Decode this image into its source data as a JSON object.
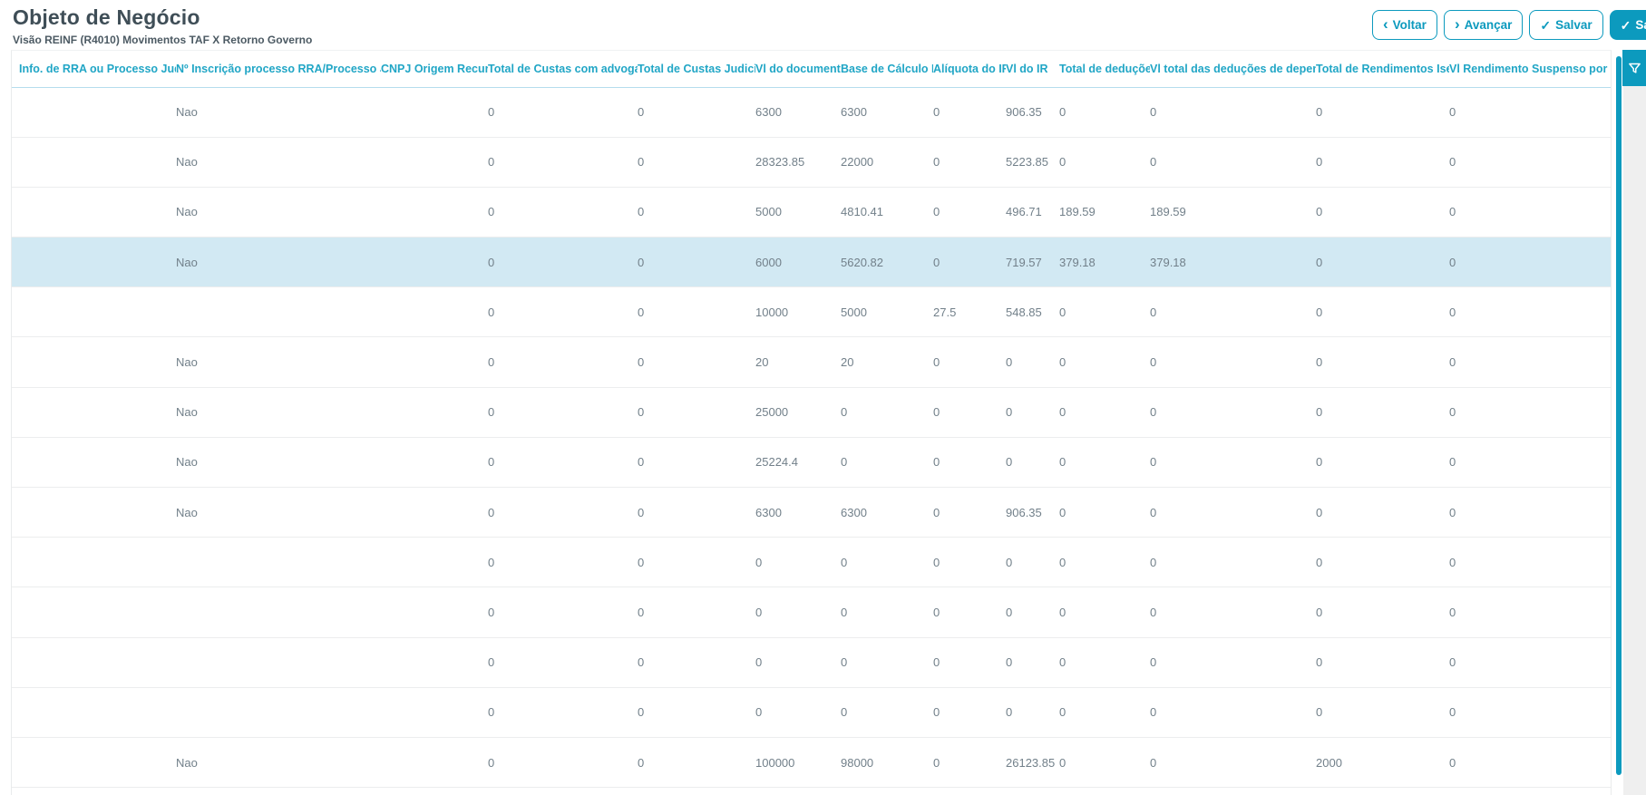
{
  "header": {
    "title": "Objeto de Negócio",
    "subtitle": "Visão REINF (R4010) Movimentos TAF X Retorno Governo",
    "buttons": [
      {
        "label": "Voltar",
        "icon": "chevron-left",
        "style": "outline"
      },
      {
        "label": "Avançar",
        "icon": "chevron-right",
        "style": "outline"
      },
      {
        "label": "Salvar",
        "icon": "check",
        "style": "outline"
      },
      {
        "label": "Salvar e Avançar",
        "icon": "check",
        "style": "primary"
      }
    ]
  },
  "icons": {
    "chevron_left": "‹",
    "chevron_right": "›",
    "check": "✓",
    "filter": "funnel-icon"
  },
  "colors": {
    "primary": "#0c9abe",
    "header_text": "#21a6c6",
    "selected_row": "#d2e9f3"
  },
  "table": {
    "columns": [
      "Info. de RRA ou Processo Judicial",
      "Nº Inscrição processo RRA/Processo Judicial",
      "CNPJ Origem Recurso",
      "Total de Custas com advogados",
      "Total de Custas Judiciais",
      "Vl do documento",
      "Base de Cálculo IR",
      "Alíquota do IR",
      "Vl do IR",
      "Total de deduções",
      "Vl total das deduções de dependentes",
      "Total de Rendimentos Isentos",
      "Vl Rendimento Suspenso por pro"
    ],
    "selected_row_index": 3,
    "rows": [
      [
        "",
        "Nao",
        "",
        "0",
        "0",
        "6300",
        "6300",
        "0",
        "906.35",
        "0",
        "0",
        "0",
        "0"
      ],
      [
        "",
        "Nao",
        "",
        "0",
        "0",
        "28323.85",
        "22000",
        "0",
        "5223.85",
        "0",
        "0",
        "0",
        "0"
      ],
      [
        "",
        "Nao",
        "",
        "0",
        "0",
        "5000",
        "4810.41",
        "0",
        "496.71",
        "189.59",
        "189.59",
        "0",
        "0"
      ],
      [
        "",
        "Nao",
        "",
        "0",
        "0",
        "6000",
        "5620.82",
        "0",
        "719.57",
        "379.18",
        "379.18",
        "0",
        "0"
      ],
      [
        "",
        "",
        "",
        "0",
        "0",
        "10000",
        "5000",
        "27.5",
        "548.85",
        "0",
        "0",
        "0",
        "0"
      ],
      [
        "",
        "Nao",
        "",
        "0",
        "0",
        "20",
        "20",
        "0",
        "0",
        "0",
        "0",
        "0",
        "0"
      ],
      [
        "",
        "Nao",
        "",
        "0",
        "0",
        "25000",
        "0",
        "0",
        "0",
        "0",
        "0",
        "0",
        "0"
      ],
      [
        "",
        "Nao",
        "",
        "0",
        "0",
        "25224.4",
        "0",
        "0",
        "0",
        "0",
        "0",
        "0",
        "0"
      ],
      [
        "",
        "Nao",
        "",
        "0",
        "0",
        "6300",
        "6300",
        "0",
        "906.35",
        "0",
        "0",
        "0",
        "0"
      ],
      [
        "",
        "",
        "",
        "0",
        "0",
        "0",
        "0",
        "0",
        "0",
        "0",
        "0",
        "0",
        "0"
      ],
      [
        "",
        "",
        "",
        "0",
        "0",
        "0",
        "0",
        "0",
        "0",
        "0",
        "0",
        "0",
        "0"
      ],
      [
        "",
        "",
        "",
        "0",
        "0",
        "0",
        "0",
        "0",
        "0",
        "0",
        "0",
        "0",
        "0"
      ],
      [
        "",
        "",
        "",
        "0",
        "0",
        "0",
        "0",
        "0",
        "0",
        "0",
        "0",
        "0",
        "0"
      ],
      [
        "",
        "Nao",
        "",
        "0",
        "0",
        "100000",
        "98000",
        "0",
        "26123.85",
        "0",
        "0",
        "2000",
        "0"
      ]
    ]
  }
}
